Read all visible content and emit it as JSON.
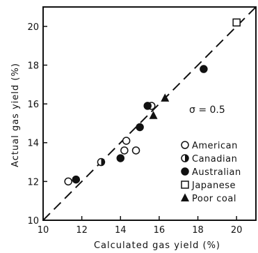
{
  "chart_data": {
    "type": "scatter",
    "xlabel": "Calculated gas yield (%)",
    "ylabel": "Actual gas yield (%)",
    "xlim": [
      10,
      21
    ],
    "ylim": [
      10,
      21
    ],
    "xticks": [
      "10",
      "12",
      "14",
      "16",
      "18",
      "20"
    ],
    "yticks": [
      "10",
      "12",
      "14",
      "16",
      "18",
      "20"
    ],
    "grid": false,
    "legend_position": "bottom-right",
    "annotation": "σ = 0.5",
    "reference_line": {
      "style": "dashed",
      "slope": 1,
      "intercept": 0
    },
    "series": [
      {
        "name": "American",
        "marker": "open-circle",
        "points": [
          [
            11.3,
            12.0
          ],
          [
            14.2,
            13.6
          ],
          [
            14.3,
            14.1
          ],
          [
            14.8,
            13.6
          ],
          [
            15.6,
            15.9
          ]
        ]
      },
      {
        "name": "Canadian",
        "marker": "half-filled-circle",
        "points": [
          [
            13.0,
            13.0
          ]
        ]
      },
      {
        "name": "Australian",
        "marker": "filled-circle",
        "points": [
          [
            11.7,
            12.1
          ],
          [
            14.0,
            13.2
          ],
          [
            15.0,
            14.8
          ],
          [
            15.4,
            15.9
          ],
          [
            18.3,
            17.8
          ]
        ]
      },
      {
        "name": "Japanese",
        "marker": "open-square",
        "points": [
          [
            20.0,
            20.2
          ]
        ]
      },
      {
        "name": "Poor coal",
        "marker": "filled-triangle",
        "points": [
          [
            15.7,
            15.4
          ],
          [
            16.3,
            16.3
          ]
        ]
      }
    ]
  },
  "colors": {
    "ink": "#111111"
  }
}
